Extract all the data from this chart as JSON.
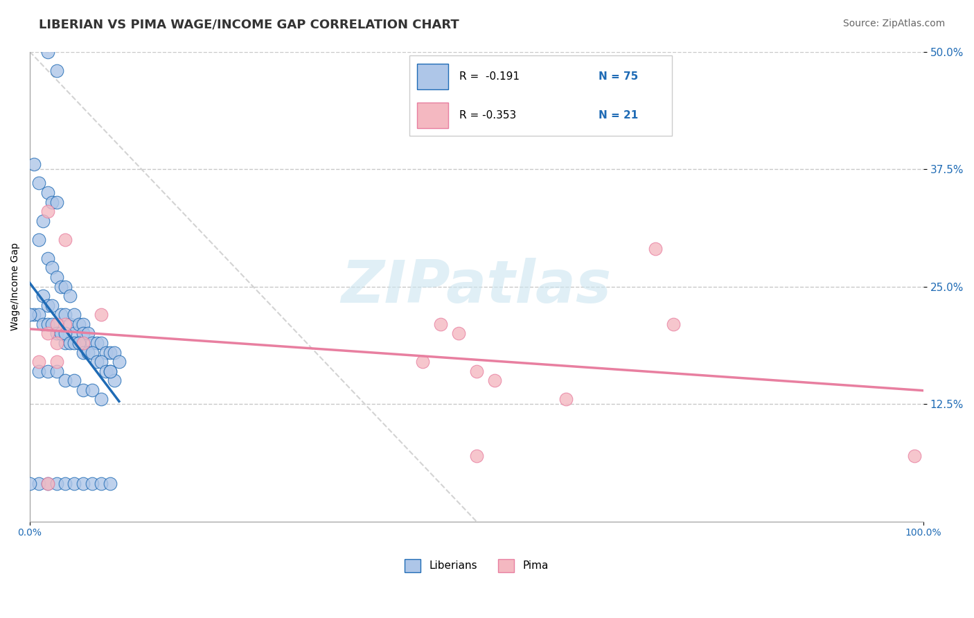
{
  "title": "LIBERIAN VS PIMA WAGE/INCOME GAP CORRELATION CHART",
  "source": "Source: ZipAtlas.com",
  "ylabel": "Wage/Income Gap",
  "x_min": 0.0,
  "x_max": 1.0,
  "y_min": 0.0,
  "y_max": 0.5,
  "legend_r1": "R =  -0.191",
  "legend_n1": "N = 75",
  "legend_r2": "R = -0.353",
  "legend_n2": "N = 21",
  "color_liberian": "#aec6e8",
  "color_pima": "#f4b8c1",
  "color_line_liberian": "#1f6bb5",
  "color_line_pima": "#e87fa0",
  "background_color": "#ffffff",
  "grid_color": "#c8c8c8",
  "watermark": "ZIPatlas",
  "liberian_x": [
    0.005,
    0.01,
    0.01,
    0.015,
    0.015,
    0.02,
    0.02,
    0.02,
    0.02,
    0.025,
    0.025,
    0.025,
    0.03,
    0.03,
    0.03,
    0.035,
    0.035,
    0.04,
    0.04,
    0.04,
    0.045,
    0.045,
    0.05,
    0.05,
    0.055,
    0.055,
    0.06,
    0.06,
    0.065,
    0.07,
    0.075,
    0.08,
    0.085,
    0.09,
    0.095,
    0.1,
    0.005,
    0.01,
    0.015,
    0.02,
    0.025,
    0.03,
    0.035,
    0.04,
    0.045,
    0.05,
    0.055,
    0.06,
    0.065,
    0.07,
    0.075,
    0.08,
    0.085,
    0.09,
    0.095,
    0.01,
    0.02,
    0.03,
    0.04,
    0.05,
    0.06,
    0.07,
    0.08,
    0.09,
    0.0,
    0.01,
    0.02,
    0.03,
    0.04,
    0.05,
    0.06,
    0.07,
    0.08,
    0.09,
    0.0
  ],
  "liberian_y": [
    0.38,
    0.36,
    0.3,
    0.32,
    0.24,
    0.5,
    0.35,
    0.28,
    0.23,
    0.34,
    0.27,
    0.23,
    0.48,
    0.34,
    0.26,
    0.25,
    0.22,
    0.25,
    0.22,
    0.19,
    0.24,
    0.21,
    0.22,
    0.2,
    0.21,
    0.19,
    0.21,
    0.2,
    0.2,
    0.19,
    0.19,
    0.19,
    0.18,
    0.18,
    0.18,
    0.17,
    0.22,
    0.22,
    0.21,
    0.21,
    0.21,
    0.2,
    0.2,
    0.2,
    0.19,
    0.19,
    0.19,
    0.18,
    0.18,
    0.18,
    0.17,
    0.17,
    0.16,
    0.16,
    0.15,
    0.16,
    0.16,
    0.16,
    0.15,
    0.15,
    0.14,
    0.14,
    0.13,
    0.16,
    0.22,
    0.04,
    0.04,
    0.04,
    0.04,
    0.04,
    0.04,
    0.04,
    0.04,
    0.04,
    0.04
  ],
  "pima_x": [
    0.02,
    0.04,
    0.04,
    0.01,
    0.02,
    0.03,
    0.03,
    0.06,
    0.08,
    0.5,
    0.52,
    0.7,
    0.72,
    0.99,
    0.6,
    0.5,
    0.48,
    0.46,
    0.44,
    0.03,
    0.02
  ],
  "pima_y": [
    0.33,
    0.3,
    0.21,
    0.17,
    0.2,
    0.21,
    0.19,
    0.19,
    0.22,
    0.16,
    0.15,
    0.29,
    0.21,
    0.07,
    0.13,
    0.07,
    0.2,
    0.21,
    0.17,
    0.17,
    0.04
  ],
  "title_fontsize": 13,
  "source_fontsize": 10,
  "label_fontsize": 10,
  "tick_fontsize": 10
}
